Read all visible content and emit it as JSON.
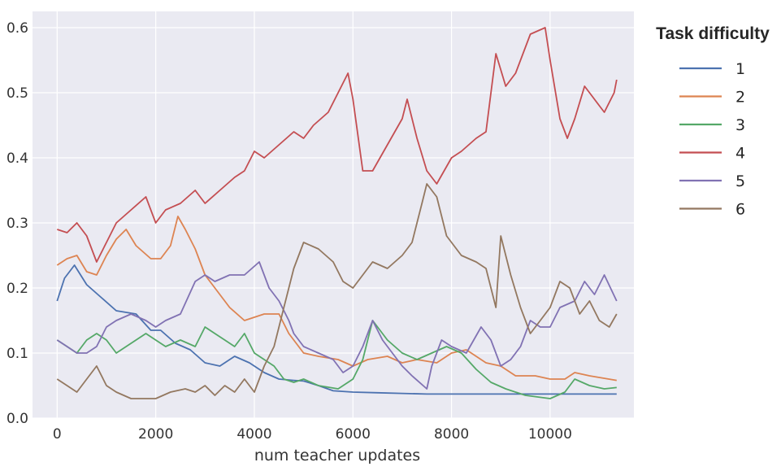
{
  "chart_data": {
    "type": "line",
    "title": "",
    "xlabel": "num teacher updates",
    "ylabel": "",
    "xlim": [
      -500,
      11700
    ],
    "ylim": [
      0.0,
      0.625
    ],
    "xticks": [
      0,
      2000,
      4000,
      6000,
      8000,
      10000
    ],
    "yticks": [
      0.0,
      0.1,
      0.2,
      0.3,
      0.4,
      0.5,
      0.6
    ],
    "grid": true,
    "legend": {
      "title": "Task difficulty",
      "placement": "outside-right"
    },
    "background": "#eaeaf2",
    "series": [
      {
        "name": "1",
        "color": "#4c72b0",
        "x": [
          0,
          150,
          350,
          600,
          900,
          1200,
          1600,
          1900,
          2100,
          2400,
          2700,
          3000,
          3300,
          3600,
          3900,
          4200,
          4500,
          4800,
          5000,
          5300,
          5600,
          6000,
          6500,
          7000,
          7500,
          8000,
          8500,
          9000,
          9500,
          10000,
          10500,
          11000,
          11350
        ],
        "y": [
          0.18,
          0.215,
          0.235,
          0.205,
          0.185,
          0.165,
          0.16,
          0.135,
          0.135,
          0.115,
          0.105,
          0.085,
          0.08,
          0.095,
          0.085,
          0.07,
          0.06,
          0.058,
          0.057,
          0.05,
          0.042,
          0.04,
          0.039,
          0.038,
          0.037,
          0.037,
          0.037,
          0.037,
          0.037,
          0.037,
          0.037,
          0.037,
          0.037
        ]
      },
      {
        "name": "2",
        "color": "#dd8452",
        "x": [
          0,
          200,
          400,
          600,
          800,
          1000,
          1200,
          1400,
          1600,
          1900,
          2100,
          2300,
          2450,
          2600,
          2800,
          3000,
          3200,
          3500,
          3800,
          4200,
          4500,
          4700,
          5000,
          5300,
          5700,
          6000,
          6300,
          6700,
          7000,
          7300,
          7700,
          8000,
          8300,
          8700,
          9000,
          9300,
          9700,
          10000,
          10300,
          10500,
          10800,
          11350
        ],
        "y": [
          0.235,
          0.245,
          0.25,
          0.225,
          0.22,
          0.25,
          0.275,
          0.29,
          0.265,
          0.245,
          0.245,
          0.265,
          0.31,
          0.29,
          0.26,
          0.22,
          0.2,
          0.17,
          0.15,
          0.16,
          0.16,
          0.13,
          0.1,
          0.095,
          0.09,
          0.08,
          0.09,
          0.095,
          0.085,
          0.09,
          0.085,
          0.1,
          0.105,
          0.085,
          0.08,
          0.065,
          0.065,
          0.06,
          0.06,
          0.07,
          0.065,
          0.058
        ]
      },
      {
        "name": "3",
        "color": "#55a868",
        "x": [
          0,
          200,
          400,
          600,
          800,
          1000,
          1200,
          1500,
          1800,
          2000,
          2200,
          2500,
          2800,
          3000,
          3200,
          3400,
          3600,
          3800,
          4000,
          4200,
          4400,
          4600,
          4800,
          5000,
          5300,
          5700,
          6000,
          6200,
          6400,
          6700,
          7000,
          7300,
          7600,
          7900,
          8200,
          8500,
          8800,
          9100,
          9500,
          10000,
          10300,
          10500,
          10800,
          11100,
          11350
        ],
        "y": [
          0.12,
          0.11,
          0.1,
          0.12,
          0.13,
          0.12,
          0.1,
          0.115,
          0.13,
          0.12,
          0.11,
          0.12,
          0.11,
          0.14,
          0.13,
          0.12,
          0.11,
          0.13,
          0.1,
          0.09,
          0.08,
          0.06,
          0.055,
          0.06,
          0.05,
          0.045,
          0.06,
          0.09,
          0.15,
          0.12,
          0.1,
          0.09,
          0.1,
          0.11,
          0.1,
          0.075,
          0.055,
          0.045,
          0.035,
          0.03,
          0.04,
          0.06,
          0.05,
          0.045,
          0.047
        ]
      },
      {
        "name": "4",
        "color": "#c44e52",
        "x": [
          0,
          200,
          400,
          600,
          800,
          1000,
          1200,
          1500,
          1800,
          2000,
          2200,
          2500,
          2800,
          3000,
          3300,
          3600,
          3800,
          4000,
          4200,
          4500,
          4800,
          5000,
          5200,
          5500,
          5900,
          6000,
          6200,
          6400,
          6700,
          7000,
          7100,
          7300,
          7500,
          7700,
          8000,
          8200,
          8500,
          8700,
          8900,
          9100,
          9300,
          9600,
          9900,
          10000,
          10200,
          10350,
          10500,
          10700,
          10800,
          11000,
          11100,
          11300,
          11350
        ],
        "y": [
          0.29,
          0.285,
          0.3,
          0.28,
          0.24,
          0.27,
          0.3,
          0.32,
          0.34,
          0.3,
          0.32,
          0.33,
          0.35,
          0.33,
          0.35,
          0.37,
          0.38,
          0.41,
          0.4,
          0.42,
          0.44,
          0.43,
          0.45,
          0.47,
          0.53,
          0.49,
          0.38,
          0.38,
          0.42,
          0.46,
          0.49,
          0.43,
          0.38,
          0.36,
          0.4,
          0.41,
          0.43,
          0.44,
          0.56,
          0.51,
          0.53,
          0.59,
          0.6,
          0.55,
          0.46,
          0.43,
          0.46,
          0.51,
          0.5,
          0.48,
          0.47,
          0.5,
          0.52
        ]
      },
      {
        "name": "5",
        "color": "#8172b3",
        "x": [
          0,
          200,
          400,
          600,
          800,
          1000,
          1200,
          1500,
          1800,
          2000,
          2200,
          2500,
          2800,
          3000,
          3200,
          3500,
          3800,
          4100,
          4300,
          4500,
          4700,
          4800,
          5000,
          5300,
          5600,
          5800,
          6000,
          6200,
          6400,
          6600,
          6800,
          7000,
          7200,
          7500,
          7600,
          7800,
          8000,
          8300,
          8600,
          8800,
          9000,
          9200,
          9400,
          9600,
          9800,
          10000,
          10200,
          10500,
          10700,
          10900,
          11100,
          11350
        ],
        "y": [
          0.12,
          0.11,
          0.1,
          0.1,
          0.11,
          0.14,
          0.15,
          0.16,
          0.15,
          0.14,
          0.15,
          0.16,
          0.21,
          0.22,
          0.21,
          0.22,
          0.22,
          0.24,
          0.2,
          0.18,
          0.15,
          0.13,
          0.11,
          0.1,
          0.09,
          0.07,
          0.08,
          0.11,
          0.15,
          0.12,
          0.1,
          0.08,
          0.065,
          0.045,
          0.08,
          0.12,
          0.11,
          0.1,
          0.14,
          0.12,
          0.08,
          0.09,
          0.11,
          0.15,
          0.14,
          0.14,
          0.17,
          0.18,
          0.21,
          0.19,
          0.22,
          0.18
        ]
      },
      {
        "name": "6",
        "color": "#937860",
        "x": [
          0,
          200,
          400,
          600,
          800,
          1000,
          1200,
          1500,
          1800,
          2000,
          2300,
          2600,
          2800,
          3000,
          3200,
          3400,
          3600,
          3800,
          4000,
          4200,
          4400,
          4600,
          4800,
          5000,
          5300,
          5600,
          5800,
          6000,
          6200,
          6400,
          6700,
          7000,
          7200,
          7400,
          7500,
          7700,
          7900,
          8200,
          8500,
          8700,
          8900,
          9000,
          9200,
          9400,
          9600,
          9800,
          10000,
          10200,
          10400,
          10600,
          10800,
          11000,
          11200,
          11350
        ],
        "y": [
          0.06,
          0.05,
          0.04,
          0.06,
          0.08,
          0.05,
          0.04,
          0.03,
          0.03,
          0.03,
          0.04,
          0.045,
          0.04,
          0.05,
          0.035,
          0.05,
          0.04,
          0.06,
          0.04,
          0.08,
          0.11,
          0.17,
          0.23,
          0.27,
          0.26,
          0.24,
          0.21,
          0.2,
          0.22,
          0.24,
          0.23,
          0.25,
          0.27,
          0.33,
          0.36,
          0.34,
          0.28,
          0.25,
          0.24,
          0.23,
          0.17,
          0.28,
          0.22,
          0.17,
          0.13,
          0.15,
          0.17,
          0.21,
          0.2,
          0.16,
          0.18,
          0.15,
          0.14,
          0.16
        ]
      }
    ]
  }
}
